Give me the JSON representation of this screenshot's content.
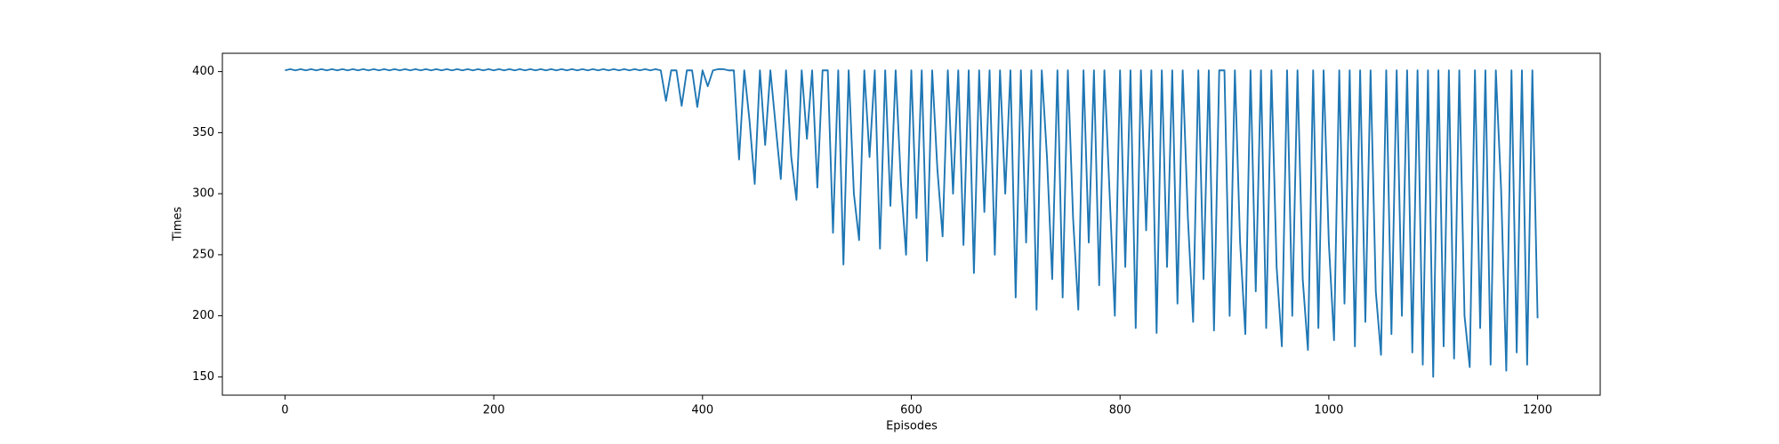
{
  "chart_data": {
    "type": "line",
    "xlabel": "Episodes",
    "ylabel": "Times",
    "xlim": [
      -60,
      1260
    ],
    "ylim": [
      135,
      415
    ],
    "xticks": [
      0,
      200,
      400,
      600,
      800,
      1000,
      1200
    ],
    "yticks": [
      150,
      200,
      250,
      300,
      350,
      400
    ],
    "x": [
      0,
      5,
      10,
      15,
      20,
      25,
      30,
      35,
      40,
      45,
      50,
      55,
      60,
      65,
      70,
      75,
      80,
      85,
      90,
      95,
      100,
      105,
      110,
      115,
      120,
      125,
      130,
      135,
      140,
      145,
      150,
      155,
      160,
      165,
      170,
      175,
      180,
      185,
      190,
      195,
      200,
      205,
      210,
      215,
      220,
      225,
      230,
      235,
      240,
      245,
      250,
      255,
      260,
      265,
      270,
      275,
      280,
      285,
      290,
      295,
      300,
      305,
      310,
      315,
      320,
      325,
      330,
      335,
      340,
      345,
      350,
      355,
      360,
      365,
      370,
      375,
      380,
      385,
      390,
      395,
      400,
      405,
      410,
      415,
      420,
      425,
      430,
      435,
      440,
      445,
      450,
      455,
      460,
      465,
      470,
      475,
      480,
      485,
      490,
      495,
      500,
      505,
      510,
      515,
      520,
      525,
      530,
      535,
      540,
      545,
      550,
      555,
      560,
      565,
      570,
      575,
      580,
      585,
      590,
      595,
      600,
      605,
      610,
      615,
      620,
      625,
      630,
      635,
      640,
      645,
      650,
      655,
      660,
      665,
      670,
      675,
      680,
      685,
      690,
      695,
      700,
      705,
      710,
      715,
      720,
      725,
      730,
      735,
      740,
      745,
      750,
      755,
      760,
      765,
      770,
      775,
      780,
      785,
      790,
      795,
      800,
      805,
      810,
      815,
      820,
      825,
      830,
      835,
      840,
      845,
      850,
      855,
      860,
      865,
      870,
      875,
      880,
      885,
      890,
      895,
      900,
      905,
      910,
      915,
      920,
      925,
      930,
      935,
      940,
      945,
      950,
      955,
      960,
      965,
      970,
      975,
      980,
      985,
      990,
      995,
      1000,
      1005,
      1010,
      1015,
      1020,
      1025,
      1030,
      1035,
      1040,
      1045,
      1050,
      1055,
      1060,
      1065,
      1070,
      1075,
      1080,
      1085,
      1090,
      1095,
      1100,
      1105,
      1110,
      1115,
      1120,
      1125,
      1130,
      1135,
      1140,
      1145,
      1150,
      1155,
      1160,
      1165,
      1170,
      1175,
      1180,
      1185,
      1190,
      1195,
      1200
    ],
    "series": [
      {
        "color": "#1f77b4",
        "values": [
          401,
          402,
          401,
          402,
          401,
          402,
          401,
          402,
          401,
          402,
          401,
          402,
          401,
          402,
          401,
          402,
          401,
          402,
          401,
          402,
          401,
          402,
          401,
          402,
          401,
          402,
          401,
          402,
          401,
          402,
          401,
          402,
          401,
          402,
          401,
          402,
          401,
          402,
          401,
          402,
          401,
          402,
          401,
          402,
          401,
          402,
          401,
          402,
          401,
          402,
          401,
          402,
          401,
          402,
          401,
          402,
          401,
          402,
          401,
          402,
          401,
          402,
          401,
          402,
          401,
          402,
          401,
          402,
          401,
          402,
          401,
          402,
          401,
          376,
          401,
          401,
          372,
          401,
          401,
          371,
          401,
          388,
          401,
          402,
          402,
          401,
          401,
          328,
          401,
          360,
          308,
          401,
          340,
          401,
          356,
          312,
          401,
          330,
          295,
          401,
          345,
          401,
          305,
          401,
          401,
          268,
          401,
          242,
          401,
          300,
          262,
          401,
          330,
          401,
          255,
          401,
          290,
          401,
          310,
          250,
          401,
          280,
          401,
          245,
          401,
          320,
          265,
          401,
          300,
          401,
          258,
          401,
          235,
          401,
          285,
          401,
          250,
          401,
          300,
          401,
          215,
          401,
          260,
          401,
          205,
          401,
          330,
          230,
          401,
          215,
          401,
          280,
          205,
          401,
          260,
          401,
          225,
          401,
          300,
          200,
          401,
          240,
          401,
          190,
          401,
          270,
          401,
          186,
          401,
          240,
          401,
          210,
          401,
          280,
          195,
          401,
          230,
          401,
          188,
          401,
          401,
          200,
          401,
          260,
          185,
          401,
          220,
          401,
          190,
          401,
          240,
          175,
          401,
          200,
          401,
          230,
          172,
          401,
          190,
          401,
          260,
          180,
          401,
          210,
          401,
          175,
          401,
          195,
          401,
          220,
          168,
          401,
          185,
          401,
          200,
          401,
          170,
          401,
          160,
          401,
          150,
          401,
          175,
          401,
          165,
          401,
          200,
          158,
          401,
          190,
          401,
          160,
          401,
          305,
          155,
          401,
          170,
          401,
          160,
          401,
          198
        ]
      }
    ]
  }
}
